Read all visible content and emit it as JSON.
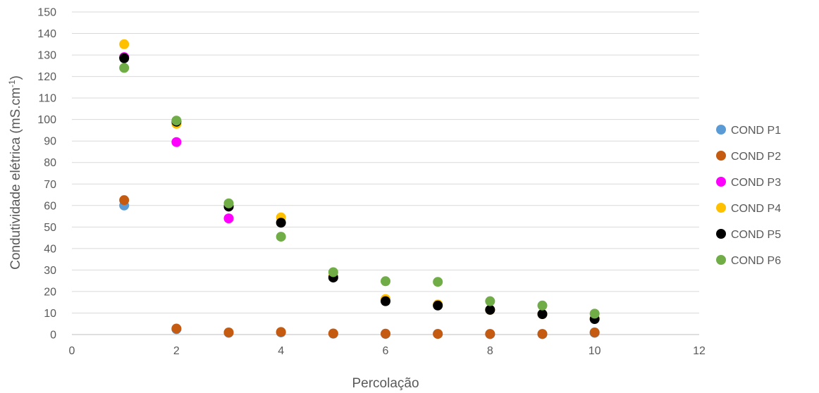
{
  "chart_data": {
    "type": "scatter",
    "title": "",
    "xlabel": "Percolação",
    "ylabel_main": "Condutividade elétrica (mS.cm",
    "ylabel_sup": "-1",
    "ylabel_end": ")",
    "xlim": [
      0,
      12
    ],
    "ylim": [
      0,
      150
    ],
    "x_ticks": [
      0,
      2,
      4,
      6,
      8,
      10,
      12
    ],
    "y_ticks": [
      0,
      10,
      20,
      30,
      40,
      50,
      60,
      70,
      80,
      90,
      100,
      110,
      120,
      130,
      140,
      150
    ],
    "grid": "horizontal",
    "legend_position": "right",
    "series": [
      {
        "name": "COND P1",
        "color": "#5b9bd5",
        "x": [
          1,
          2,
          3,
          4,
          5,
          6,
          7,
          8,
          9,
          10
        ],
        "y": [
          60,
          2.5,
          0.8,
          1,
          0.4,
          0.3,
          0.3,
          0.2,
          0.2,
          0.8
        ]
      },
      {
        "name": "COND P2",
        "color": "#c55a11",
        "x": [
          1,
          2,
          3,
          4,
          5,
          6,
          7,
          8,
          9,
          10
        ],
        "y": [
          62.5,
          2.8,
          1,
          1.2,
          0.5,
          0.4,
          0.3,
          0.3,
          0.3,
          1
        ]
      },
      {
        "name": "COND P3",
        "color": "#ff00ff",
        "x": [
          1,
          2,
          3
        ],
        "y": [
          129,
          89.5,
          54
        ]
      },
      {
        "name": "COND P4",
        "color": "#ffc000",
        "x": [
          1,
          2,
          3,
          4,
          5,
          6,
          7,
          8,
          9,
          10
        ],
        "y": [
          135,
          98,
          60,
          54.5,
          27,
          16.5,
          14,
          11.5,
          9.5,
          7.5
        ]
      },
      {
        "name": "COND P5",
        "color": "#000000",
        "x": [
          1,
          2,
          3,
          4,
          5,
          6,
          7,
          8,
          9,
          10
        ],
        "y": [
          128.5,
          99,
          59.5,
          52,
          26.5,
          15.5,
          13.5,
          11.5,
          9.5,
          7.2
        ]
      },
      {
        "name": "COND P6",
        "color": "#70ad47",
        "x": [
          1,
          2,
          3,
          4,
          5,
          6,
          7,
          8,
          9,
          10
        ],
        "y": [
          124,
          99.5,
          61,
          45.5,
          29,
          24.8,
          24.5,
          15.5,
          13.5,
          9.7
        ]
      }
    ]
  }
}
